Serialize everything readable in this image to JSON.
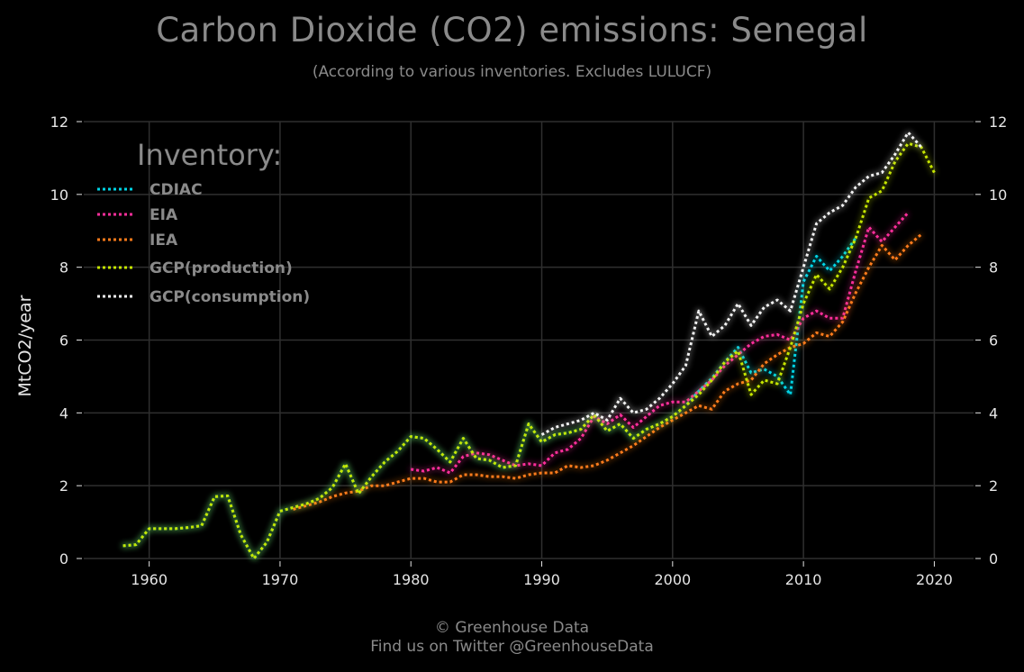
{
  "title": "Carbon Dioxide (CO2) emissions: Senegal",
  "subtitle": "(According to various inventories. Excludes LULUCF)",
  "footer": {
    "credit": "© Greenhouse Data",
    "twitter": "Find us on Twitter @GreenhouseData"
  },
  "chart_data": {
    "type": "line",
    "title": "Carbon Dioxide (CO2) emissions: Senegal",
    "subtitle": "(According to various inventories. Excludes LULUCF)",
    "xlabel": "",
    "ylabel": "MtCO2/year",
    "xlim": [
      1955,
      2023
    ],
    "ylim": [
      0,
      12
    ],
    "x_ticks": [
      1960,
      1970,
      1980,
      1990,
      2000,
      2010,
      2020
    ],
    "y_ticks": [
      0,
      2,
      4,
      6,
      8,
      10,
      12
    ],
    "grid": true,
    "legend_title": "Inventory:",
    "legend_position": "top-left",
    "series": [
      {
        "name": "CDIAC",
        "color": "#00d4e6",
        "x": [
          1958,
          1959,
          1960,
          1961,
          1962,
          1963,
          1964,
          1965,
          1966,
          1967,
          1968,
          1969,
          1970,
          1971,
          1972,
          1973,
          1974,
          1975,
          1976,
          1977,
          1978,
          1979,
          1980,
          1981,
          1982,
          1983,
          1984,
          1985,
          1986,
          1987,
          1988,
          1989,
          1990,
          1991,
          1992,
          1993,
          1994,
          1995,
          1996,
          1997,
          1998,
          1999,
          2000,
          2001,
          2002,
          2003,
          2004,
          2005,
          2006,
          2007,
          2008,
          2009,
          2010,
          2011,
          2012,
          2013,
          2014
        ],
        "values": [
          0.35,
          0.38,
          0.82,
          0.82,
          0.82,
          0.85,
          0.9,
          1.7,
          1.72,
          0.65,
          0.0,
          0.45,
          1.3,
          1.4,
          1.5,
          1.65,
          1.95,
          2.6,
          1.78,
          2.25,
          2.65,
          2.95,
          3.35,
          3.3,
          3.0,
          2.65,
          3.3,
          2.75,
          2.7,
          2.5,
          2.55,
          3.7,
          3.2,
          3.4,
          3.45,
          3.55,
          3.95,
          3.5,
          3.7,
          3.3,
          3.55,
          3.7,
          3.9,
          4.2,
          4.6,
          4.95,
          5.4,
          5.8,
          5.1,
          5.2,
          5.0,
          4.5,
          7.6,
          8.3,
          7.9,
          8.3,
          8.8
        ]
      },
      {
        "name": "EIA",
        "color": "#ff2f9b",
        "x": [
          1980,
          1981,
          1982,
          1983,
          1984,
          1985,
          1986,
          1987,
          1988,
          1989,
          1990,
          1991,
          1992,
          1993,
          1994,
          1995,
          1996,
          1997,
          1998,
          1999,
          2000,
          2001,
          2002,
          2003,
          2004,
          2005,
          2006,
          2007,
          2008,
          2009,
          2010,
          2011,
          2012,
          2013,
          2014,
          2015,
          2016,
          2017,
          2018
        ],
        "values": [
          2.45,
          2.4,
          2.5,
          2.35,
          2.8,
          2.9,
          2.85,
          2.7,
          2.55,
          2.6,
          2.55,
          2.9,
          3.0,
          3.3,
          3.9,
          3.7,
          3.95,
          3.6,
          3.9,
          4.2,
          4.3,
          4.3,
          4.6,
          4.9,
          5.3,
          5.6,
          5.9,
          6.1,
          6.15,
          6.0,
          6.6,
          6.8,
          6.6,
          6.6,
          7.9,
          9.1,
          8.7,
          9.1,
          9.5
        ]
      },
      {
        "name": "IEA",
        "color": "#ff7b1a",
        "x": [
          1971,
          1972,
          1973,
          1974,
          1975,
          1976,
          1977,
          1978,
          1979,
          1980,
          1981,
          1982,
          1983,
          1984,
          1985,
          1986,
          1987,
          1988,
          1989,
          1990,
          1991,
          1992,
          1993,
          1994,
          1995,
          1996,
          1997,
          1998,
          1999,
          2000,
          2001,
          2002,
          2003,
          2004,
          2005,
          2006,
          2007,
          2008,
          2009,
          2010,
          2011,
          2012,
          2013,
          2014,
          2015,
          2016,
          2017,
          2018,
          2019
        ],
        "values": [
          1.35,
          1.45,
          1.55,
          1.7,
          1.8,
          1.85,
          2.0,
          2.0,
          2.1,
          2.2,
          2.2,
          2.1,
          2.1,
          2.3,
          2.3,
          2.25,
          2.25,
          2.2,
          2.3,
          2.35,
          2.35,
          2.55,
          2.5,
          2.55,
          2.7,
          2.9,
          3.1,
          3.35,
          3.6,
          3.8,
          4.0,
          4.2,
          4.1,
          4.6,
          4.8,
          4.9,
          5.35,
          5.6,
          5.8,
          5.9,
          6.2,
          6.1,
          6.5,
          7.3,
          8.0,
          8.6,
          8.2,
          8.6,
          8.9
        ]
      },
      {
        "name": "GCP(production)",
        "color": "#c6e600",
        "x": [
          1958,
          1959,
          1960,
          1961,
          1962,
          1963,
          1964,
          1965,
          1966,
          1967,
          1968,
          1969,
          1970,
          1971,
          1972,
          1973,
          1974,
          1975,
          1976,
          1977,
          1978,
          1979,
          1980,
          1981,
          1982,
          1983,
          1984,
          1985,
          1986,
          1987,
          1988,
          1989,
          1990,
          1991,
          1992,
          1993,
          1994,
          1995,
          1996,
          1997,
          1998,
          1999,
          2000,
          2001,
          2002,
          2003,
          2004,
          2005,
          2006,
          2007,
          2008,
          2009,
          2010,
          2011,
          2012,
          2013,
          2014,
          2015,
          2016,
          2017,
          2018,
          2019,
          2020
        ],
        "values": [
          0.35,
          0.38,
          0.82,
          0.82,
          0.82,
          0.85,
          0.9,
          1.7,
          1.72,
          0.65,
          0.0,
          0.45,
          1.3,
          1.4,
          1.5,
          1.65,
          1.95,
          2.6,
          1.78,
          2.25,
          2.65,
          2.95,
          3.35,
          3.3,
          3.0,
          2.65,
          3.3,
          2.75,
          2.7,
          2.5,
          2.55,
          3.7,
          3.2,
          3.4,
          3.45,
          3.55,
          3.95,
          3.5,
          3.7,
          3.3,
          3.55,
          3.7,
          3.9,
          4.2,
          4.5,
          4.9,
          5.4,
          5.7,
          4.5,
          4.9,
          4.8,
          5.8,
          7.0,
          7.8,
          7.4,
          8.0,
          8.8,
          9.9,
          10.1,
          10.9,
          11.4,
          11.3,
          10.6
        ]
      },
      {
        "name": "GCP(consumption)",
        "color": "#f2f2f2",
        "x": [
          1990,
          1991,
          1992,
          1993,
          1994,
          1995,
          1996,
          1997,
          1998,
          1999,
          2000,
          2001,
          2002,
          2003,
          2004,
          2005,
          2006,
          2007,
          2008,
          2009,
          2010,
          2011,
          2012,
          2013,
          2014,
          2015,
          2016,
          2017,
          2018,
          2019
        ],
        "values": [
          3.4,
          3.6,
          3.7,
          3.8,
          4.0,
          3.8,
          4.4,
          4.0,
          4.1,
          4.4,
          4.8,
          5.3,
          6.8,
          6.1,
          6.4,
          7.0,
          6.4,
          6.9,
          7.1,
          6.8,
          8.0,
          9.2,
          9.5,
          9.7,
          10.2,
          10.5,
          10.6,
          11.1,
          11.7,
          11.3
        ]
      }
    ]
  }
}
